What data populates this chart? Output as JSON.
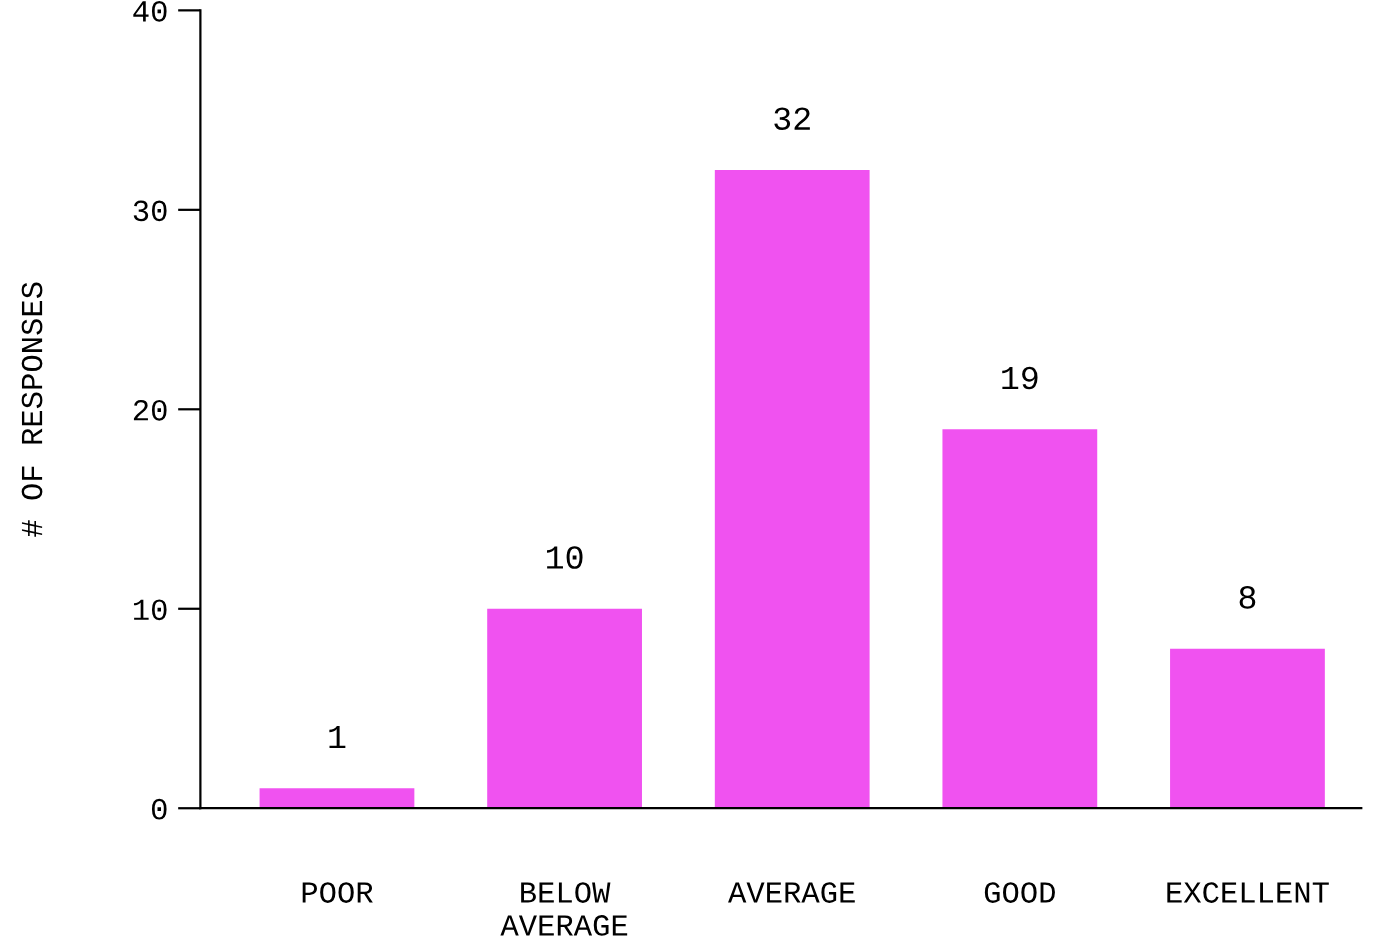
{
  "chart_data": {
    "type": "bar",
    "ylabel": "# OF RESPONSES",
    "categories": [
      "POOR",
      "BELOW\nAVERAGE",
      "AVERAGE",
      "GOOD",
      "EXCELLENT"
    ],
    "values": [
      1,
      10,
      32,
      19,
      8
    ],
    "color": "#f052f0",
    "ylim": [
      0,
      40
    ],
    "yticks": [
      0,
      10,
      20,
      30,
      40
    ],
    "data_labels": true,
    "grid": false,
    "legend": false
  }
}
